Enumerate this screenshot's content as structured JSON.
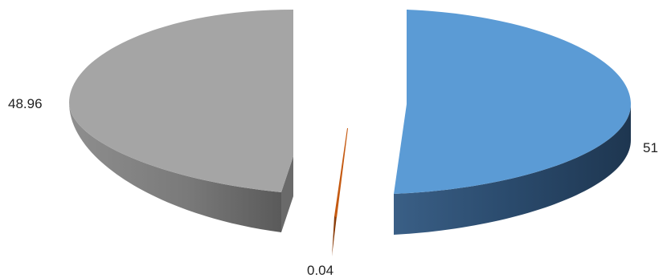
{
  "chart_data": {
    "type": "pie",
    "variant": "3d-exploded",
    "title": "",
    "legend": "none",
    "slices": [
      {
        "value": 51,
        "label": "51",
        "color": "#5B9BD5",
        "side_color": "#223C58"
      },
      {
        "value": 0.04,
        "label": "0.04",
        "color": "#C55A11",
        "side_color": "#8A3D0A"
      },
      {
        "value": 48.96,
        "label": "48.96",
        "color": "#A5A5A5",
        "side_color": "#6E6E6E"
      }
    ]
  }
}
